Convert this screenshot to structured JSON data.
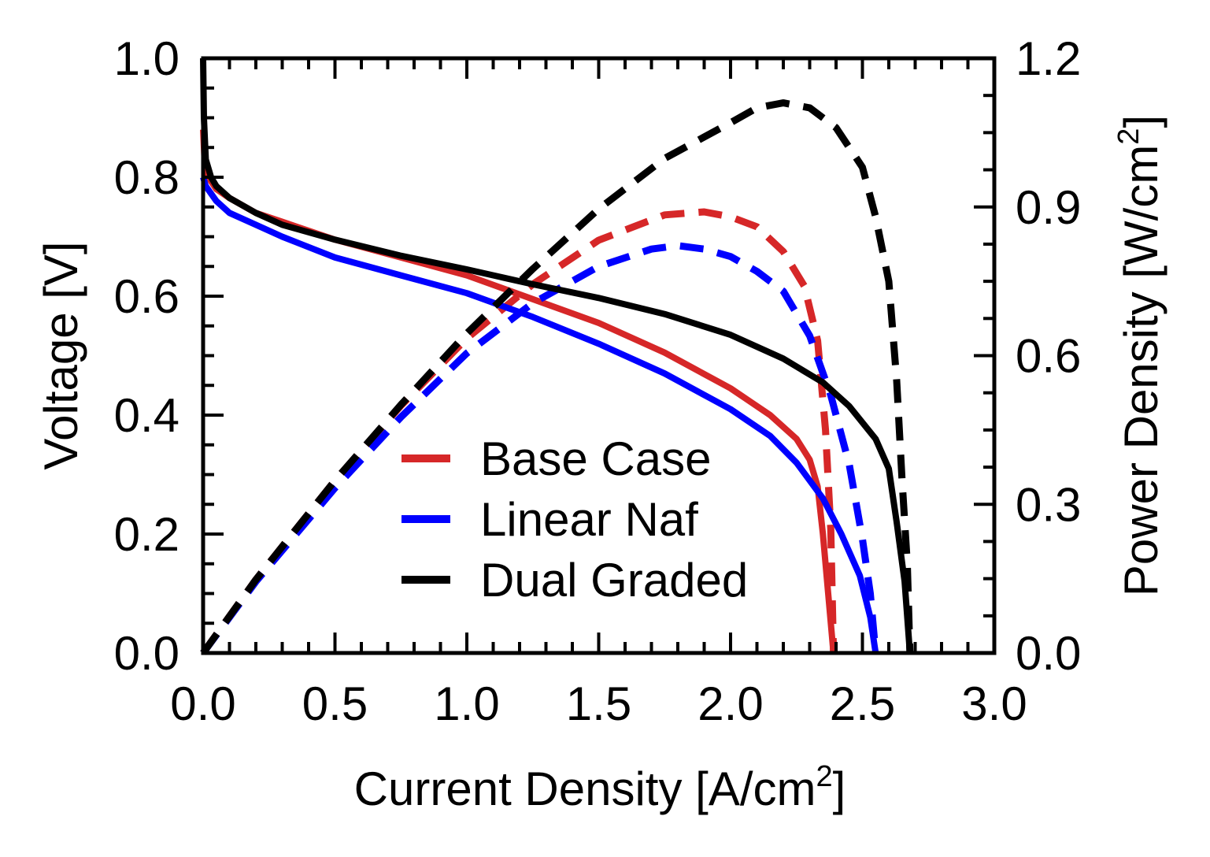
{
  "chart_data": {
    "type": "line",
    "xlabel": "Current Density [A/cm",
    "xlabel_sup": "2",
    "xlabel_end": "]",
    "ylabel": "Voltage [V]",
    "y2label": "Power Density [W/cm",
    "y2label_sup": "2",
    "y2label_end": "]",
    "xlim": [
      0,
      3.0
    ],
    "ylim": [
      0,
      1.0
    ],
    "y2lim": [
      0,
      1.2
    ],
    "xticks": [
      "0.0",
      "0.5",
      "1.0",
      "1.5",
      "2.0",
      "2.5",
      "3.0"
    ],
    "yticks": [
      "0.0",
      "0.2",
      "0.4",
      "0.6",
      "0.8",
      "1.0"
    ],
    "y2ticks": [
      "0.0",
      "0.3",
      "0.6",
      "0.9",
      "1.2"
    ],
    "grid": false,
    "legend": {
      "position": "lower-center",
      "entries": [
        "Base Case",
        "Linear Naf",
        "Dual Graded"
      ]
    },
    "series": [
      {
        "name": "Base Case",
        "color": "#d62728",
        "voltage": [
          [
            0,
            0.88
          ],
          [
            0.005,
            0.83
          ],
          [
            0.02,
            0.8
          ],
          [
            0.05,
            0.78
          ],
          [
            0.1,
            0.765
          ],
          [
            0.2,
            0.74
          ],
          [
            0.3,
            0.725
          ],
          [
            0.5,
            0.695
          ],
          [
            0.75,
            0.665
          ],
          [
            1.0,
            0.635
          ],
          [
            1.25,
            0.595
          ],
          [
            1.5,
            0.555
          ],
          [
            1.75,
            0.505
          ],
          [
            2.0,
            0.445
          ],
          [
            2.15,
            0.4
          ],
          [
            2.25,
            0.36
          ],
          [
            2.3,
            0.325
          ],
          [
            2.33,
            0.28
          ],
          [
            2.35,
            0.2
          ],
          [
            2.37,
            0.1
          ],
          [
            2.39,
            0.0
          ]
        ],
        "power": [
          [
            0,
            0
          ],
          [
            0.2,
            0.148
          ],
          [
            0.5,
            0.348
          ],
          [
            0.75,
            0.499
          ],
          [
            1.0,
            0.635
          ],
          [
            1.25,
            0.744
          ],
          [
            1.5,
            0.833
          ],
          [
            1.75,
            0.884
          ],
          [
            1.9,
            0.89
          ],
          [
            2.0,
            0.88
          ],
          [
            2.1,
            0.86
          ],
          [
            2.2,
            0.81
          ],
          [
            2.28,
            0.74
          ],
          [
            2.33,
            0.63
          ],
          [
            2.36,
            0.45
          ],
          [
            2.38,
            0.25
          ],
          [
            2.39,
            0.0
          ]
        ]
      },
      {
        "name": "Linear Naf",
        "color": "#0000ff",
        "voltage": [
          [
            0,
            0.8
          ],
          [
            0.01,
            0.785
          ],
          [
            0.05,
            0.76
          ],
          [
            0.1,
            0.74
          ],
          [
            0.2,
            0.72
          ],
          [
            0.3,
            0.7
          ],
          [
            0.5,
            0.665
          ],
          [
            0.75,
            0.635
          ],
          [
            1.0,
            0.605
          ],
          [
            1.25,
            0.565
          ],
          [
            1.5,
            0.52
          ],
          [
            1.75,
            0.47
          ],
          [
            2.0,
            0.41
          ],
          [
            2.15,
            0.365
          ],
          [
            2.25,
            0.32
          ],
          [
            2.35,
            0.26
          ],
          [
            2.42,
            0.2
          ],
          [
            2.49,
            0.13
          ],
          [
            2.53,
            0.06
          ],
          [
            2.55,
            0.0
          ]
        ],
        "power": [
          [
            0,
            0
          ],
          [
            0.2,
            0.144
          ],
          [
            0.5,
            0.333
          ],
          [
            0.75,
            0.476
          ],
          [
            1.0,
            0.605
          ],
          [
            1.25,
            0.706
          ],
          [
            1.5,
            0.78
          ],
          [
            1.7,
            0.815
          ],
          [
            1.8,
            0.822
          ],
          [
            1.9,
            0.815
          ],
          [
            2.0,
            0.8
          ],
          [
            2.1,
            0.77
          ],
          [
            2.2,
            0.73
          ],
          [
            2.3,
            0.64
          ],
          [
            2.38,
            0.52
          ],
          [
            2.45,
            0.38
          ],
          [
            2.5,
            0.23
          ],
          [
            2.53,
            0.12
          ],
          [
            2.55,
            0.0
          ]
        ]
      },
      {
        "name": "Dual Graded",
        "color": "#000000",
        "voltage": [
          [
            0,
            1.0
          ],
          [
            0.003,
            0.9
          ],
          [
            0.01,
            0.83
          ],
          [
            0.03,
            0.8
          ],
          [
            0.05,
            0.785
          ],
          [
            0.1,
            0.765
          ],
          [
            0.2,
            0.74
          ],
          [
            0.3,
            0.72
          ],
          [
            0.5,
            0.695
          ],
          [
            0.75,
            0.668
          ],
          [
            1.0,
            0.645
          ],
          [
            1.25,
            0.62
          ],
          [
            1.5,
            0.597
          ],
          [
            1.75,
            0.57
          ],
          [
            2.0,
            0.535
          ],
          [
            2.2,
            0.495
          ],
          [
            2.35,
            0.455
          ],
          [
            2.45,
            0.415
          ],
          [
            2.55,
            0.36
          ],
          [
            2.6,
            0.31
          ],
          [
            2.63,
            0.22
          ],
          [
            2.66,
            0.12
          ],
          [
            2.68,
            0.0
          ]
        ],
        "power": [
          [
            0,
            0
          ],
          [
            0.2,
            0.148
          ],
          [
            0.5,
            0.348
          ],
          [
            0.75,
            0.501
          ],
          [
            1.0,
            0.645
          ],
          [
            1.25,
            0.775
          ],
          [
            1.5,
            0.896
          ],
          [
            1.75,
            0.998
          ],
          [
            2.0,
            1.07
          ],
          [
            2.1,
            1.1
          ],
          [
            2.2,
            1.11
          ],
          [
            2.3,
            1.1
          ],
          [
            2.4,
            1.06
          ],
          [
            2.5,
            0.98
          ],
          [
            2.55,
            0.88
          ],
          [
            2.6,
            0.75
          ],
          [
            2.63,
            0.55
          ],
          [
            2.65,
            0.35
          ],
          [
            2.67,
            0.18
          ],
          [
            2.68,
            0.0
          ]
        ]
      }
    ]
  }
}
